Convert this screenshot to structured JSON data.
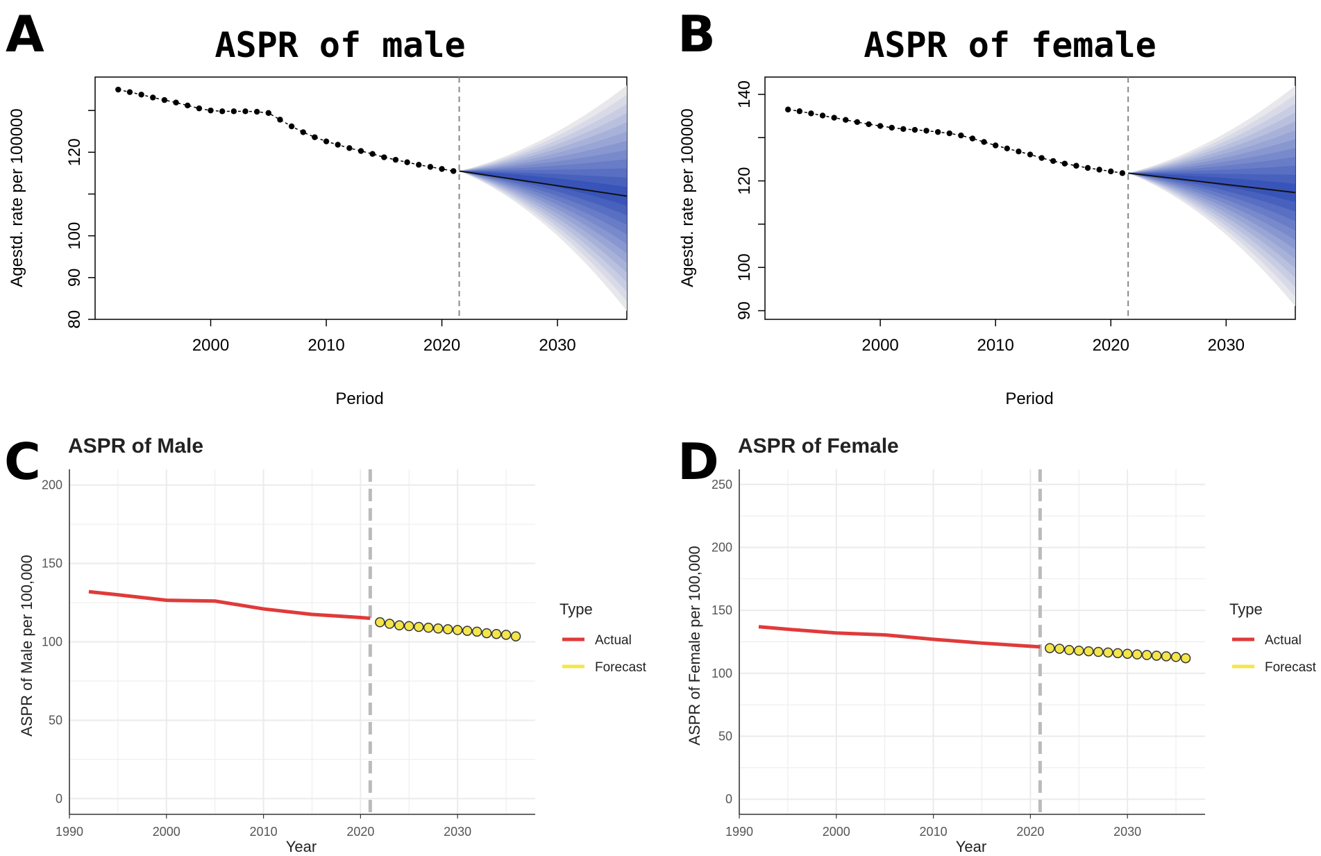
{
  "chart_data": [
    {
      "panel": "A",
      "type": "line",
      "title": "ASPR of male",
      "xlabel": "Period",
      "ylabel": "Agestd. rate per 100000",
      "xlim": [
        1990,
        2036
      ],
      "xticks": [
        2000,
        2010,
        2020,
        2030
      ],
      "ylim": [
        80,
        138
      ],
      "yticks": [
        80,
        90,
        100,
        120
      ],
      "observed": {
        "x": [
          1992,
          1993,
          1994,
          1995,
          1996,
          1997,
          1998,
          1999,
          2000,
          2001,
          2002,
          2003,
          2004,
          2005,
          2006,
          2007,
          2008,
          2009,
          2010,
          2011,
          2012,
          2013,
          2014,
          2015,
          2016,
          2017,
          2018,
          2019,
          2020,
          2021
        ],
        "y": [
          135,
          134.4,
          133.8,
          133.1,
          132.5,
          131.9,
          131.2,
          130.5,
          130,
          129.8,
          129.8,
          129.8,
          129.7,
          129.4,
          127.8,
          126.2,
          124.8,
          123.6,
          122.6,
          121.8,
          121,
          120.3,
          119.6,
          118.8,
          118.2,
          117.6,
          117,
          116.5,
          116,
          115.5
        ]
      },
      "forecast": {
        "start": 2021.5,
        "end": 2036,
        "center_start": 115.5,
        "center_end": 109.5,
        "upper_end": 136,
        "lower_end": 82
      }
    },
    {
      "panel": "B",
      "type": "line",
      "title": "ASPR of female",
      "xlabel": "Period",
      "ylabel": "Agestd. rate per 100000",
      "xlim": [
        1990,
        2036
      ],
      "xticks": [
        2000,
        2010,
        2020,
        2030
      ],
      "ylim": [
        88,
        144
      ],
      "yticks": [
        90,
        100,
        120,
        140
      ],
      "observed": {
        "x": [
          1992,
          1993,
          1994,
          1995,
          1996,
          1997,
          1998,
          1999,
          2000,
          2001,
          2002,
          2003,
          2004,
          2005,
          2006,
          2007,
          2008,
          2009,
          2010,
          2011,
          2012,
          2013,
          2014,
          2015,
          2016,
          2017,
          2018,
          2019,
          2020,
          2021
        ],
        "y": [
          136.5,
          136.1,
          135.6,
          135.1,
          134.6,
          134.1,
          133.6,
          133.1,
          132.7,
          132.3,
          132,
          131.8,
          131.6,
          131.3,
          131,
          130.5,
          129.8,
          129,
          128.2,
          127.5,
          126.8,
          126.1,
          125.3,
          124.6,
          124,
          123.5,
          123,
          122.6,
          122.2,
          121.8
        ]
      },
      "forecast": {
        "start": 2021.5,
        "end": 2036,
        "center_start": 121.8,
        "center_end": 117.3,
        "upper_end": 142,
        "lower_end": 91
      }
    },
    {
      "panel": "C",
      "type": "line",
      "title": "ASPR of Male",
      "xlabel": "Year",
      "ylabel": "ASPR of Male per 100,000",
      "xlim": [
        1990,
        2038
      ],
      "xticks": [
        1990,
        2000,
        2010,
        2020,
        2030
      ],
      "ylim": [
        -10,
        210
      ],
      "yticks": [
        0,
        50,
        100,
        150,
        200
      ],
      "actual": {
        "x": [
          1992,
          1995,
          2000,
          2005,
          2010,
          2015,
          2020,
          2021
        ],
        "y": [
          132,
          130,
          126.5,
          126,
          121,
          117.5,
          115.5,
          115
        ]
      },
      "forecast": {
        "x": [
          2022,
          2023,
          2024,
          2025,
          2026,
          2027,
          2028,
          2029,
          2030,
          2031,
          2032,
          2033,
          2034,
          2035,
          2036
        ],
        "y": [
          112.5,
          111.5,
          110.5,
          110,
          109.5,
          109,
          108.5,
          108,
          107.5,
          107,
          106.5,
          105.5,
          105,
          104.5,
          103.5
        ]
      },
      "divider": 2021,
      "legend": {
        "title": "Type",
        "entries": [
          "Actual",
          "Forecast"
        ],
        "colors": [
          "#e03a3a",
          "#f4e64a"
        ]
      }
    },
    {
      "panel": "D",
      "type": "line",
      "title": "ASPR of Female",
      "xlabel": "Year",
      "ylabel": "ASPR of Female per 100,000",
      "xlim": [
        1990,
        2038
      ],
      "xticks": [
        1990,
        2000,
        2010,
        2020,
        2030
      ],
      "ylim": [
        -12,
        262
      ],
      "yticks": [
        0,
        50,
        100,
        150,
        200,
        250
      ],
      "actual": {
        "x": [
          1992,
          1995,
          2000,
          2005,
          2010,
          2015,
          2020,
          2021
        ],
        "y": [
          137,
          135,
          132,
          130.5,
          127,
          124,
          121.5,
          121
        ]
      },
      "forecast": {
        "x": [
          2022,
          2023,
          2024,
          2025,
          2026,
          2027,
          2028,
          2029,
          2030,
          2031,
          2032,
          2033,
          2034,
          2035,
          2036
        ],
        "y": [
          120,
          119.5,
          118.5,
          118,
          117.5,
          117,
          116.5,
          116,
          115.5,
          115,
          114.5,
          114,
          113.5,
          113,
          112
        ]
      },
      "divider": 2021,
      "legend": {
        "title": "Type",
        "entries": [
          "Actual",
          "Forecast"
        ],
        "colors": [
          "#e03a3a",
          "#f4e64a"
        ]
      }
    }
  ]
}
